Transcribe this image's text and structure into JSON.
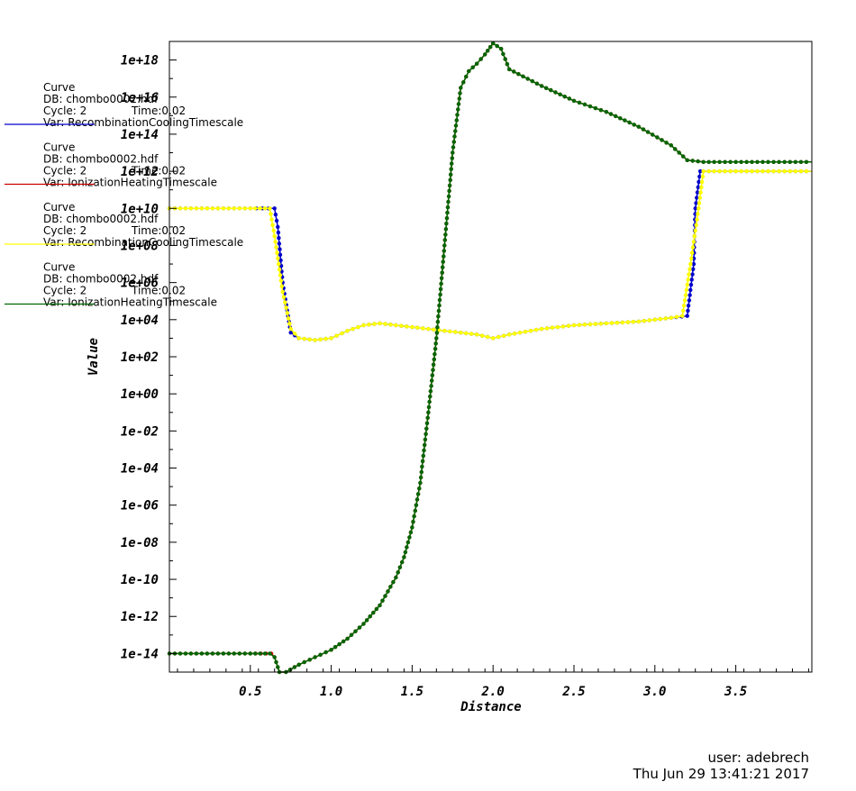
{
  "chart_data": {
    "type": "line",
    "xlabel": "Distance",
    "ylabel": "Value",
    "yscale": "log",
    "xlim": [
      0.0,
      3.97
    ],
    "ylim_exp": [
      -15.0,
      19.0
    ],
    "x_ticks": [
      0.5,
      1.0,
      1.5,
      2.0,
      2.5,
      3.0,
      3.5
    ],
    "x_tick_labels": [
      "0.5",
      "1.0",
      "1.5",
      "2.0",
      "2.5",
      "3.0",
      "3.5"
    ],
    "y_ticks_exp": [
      -14,
      -12,
      -10,
      -8,
      -6,
      -4,
      -2,
      0,
      2,
      4,
      6,
      8,
      10,
      12,
      14,
      16,
      18
    ],
    "y_tick_labels": [
      "1e-14",
      "1e-12",
      "1e-10",
      "1e-08",
      "1e-06",
      "1e-04",
      "1e-02",
      "1e+00",
      "1e+02",
      "1e+04",
      "1e+06",
      "1e+08",
      "1e+10",
      "1e+12",
      "1e+14",
      "1e+16",
      "1e+18"
    ],
    "series": [
      {
        "name": "RecombinationCoolingTimescale",
        "color": "#0000cc",
        "legend": {
          "title": "Curve",
          "db": "DB: chombo0002.hdf",
          "cycle": "Cycle: 2",
          "time": "Time:0.02",
          "var": "Var: RecombinationCoolingTimescale"
        },
        "x": [
          0.0,
          0.3,
          0.5,
          0.65,
          0.67,
          0.7,
          0.75,
          0.8,
          0.9,
          1.0,
          1.1,
          1.2,
          1.3,
          1.5,
          1.7,
          1.9,
          2.0,
          2.1,
          2.3,
          2.5,
          2.7,
          2.9,
          3.1,
          3.2,
          3.24,
          3.25,
          3.28,
          3.3,
          3.5,
          3.7,
          3.97
        ],
        "y_exp": [
          10.0,
          10.0,
          10.0,
          10.0,
          9.0,
          6.0,
          3.3,
          3.0,
          2.9,
          3.0,
          3.4,
          3.7,
          3.8,
          3.6,
          3.4,
          3.2,
          3.0,
          3.2,
          3.5,
          3.7,
          3.8,
          3.9,
          4.1,
          4.2,
          7.0,
          10.0,
          12.0,
          12.0,
          12.0,
          12.0,
          12.0
        ]
      },
      {
        "name": "IonizationHeatingTimescale",
        "color": "#cc0000",
        "legend": {
          "title": "Curve",
          "db": "DB: chombo0002.hdf",
          "cycle": "Cycle: 2",
          "time": "Time:0.02",
          "var": "Var: IonizationHeatingTimescale"
        },
        "x": [
          0.0,
          0.3,
          0.5,
          0.63,
          0.65,
          0.68,
          0.72,
          0.8,
          0.9,
          1.0,
          1.1,
          1.2,
          1.3,
          1.4,
          1.45,
          1.5,
          1.55,
          1.6,
          1.65,
          1.7,
          1.75,
          1.8,
          1.85,
          1.9,
          1.95,
          2.0,
          2.05,
          2.1,
          2.3,
          2.5,
          2.7,
          2.9,
          3.1,
          3.2,
          3.3,
          3.5,
          3.7,
          3.97
        ],
        "y_exp": [
          -14.0,
          -14.0,
          -14.0,
          -14.0,
          -14.2,
          -15.0,
          -15.0,
          -14.6,
          -14.2,
          -13.8,
          -13.2,
          -12.4,
          -11.4,
          -9.9,
          -8.8,
          -7.2,
          -4.8,
          -1.0,
          3.0,
          8.0,
          13.0,
          16.5,
          17.4,
          17.8,
          18.3,
          18.9,
          18.6,
          17.5,
          16.6,
          15.8,
          15.2,
          14.4,
          13.4,
          12.6,
          12.5,
          12.5,
          12.5,
          12.5
        ]
      },
      {
        "name": "RecombinationCoolingTimescale",
        "color": "#ffff00",
        "legend": {
          "title": "Curve",
          "db": "DB: chombo0002.hdf",
          "cycle": "Cycle: 2",
          "time": "Time:0.02",
          "var": "Var: RecombinationCoolingTimescale"
        },
        "x": [
          0.0,
          0.3,
          0.5,
          0.62,
          0.65,
          0.7,
          0.75,
          0.8,
          0.9,
          1.0,
          1.1,
          1.2,
          1.3,
          1.5,
          1.7,
          1.9,
          2.0,
          2.1,
          2.3,
          2.5,
          2.7,
          2.9,
          3.1,
          3.17,
          3.22,
          3.27,
          3.3,
          3.5,
          3.7,
          3.97
        ],
        "y_exp": [
          10.0,
          10.0,
          10.0,
          10.0,
          8.5,
          5.5,
          3.5,
          3.0,
          2.9,
          3.0,
          3.4,
          3.7,
          3.8,
          3.6,
          3.4,
          3.2,
          3.0,
          3.2,
          3.5,
          3.7,
          3.8,
          3.9,
          4.1,
          4.2,
          7.0,
          10.0,
          12.0,
          12.0,
          12.0,
          12.0
        ]
      },
      {
        "name": "IonizationHeatingTimescale",
        "color": "#006600",
        "legend": {
          "title": "Curve",
          "db": "DB: chombo0002.hdf",
          "cycle": "Cycle: 2",
          "time": "Time:0.02",
          "var": "Var: IonizationHeatingTimescale"
        },
        "x": [
          0.0,
          0.3,
          0.5,
          0.62,
          0.65,
          0.68,
          0.72,
          0.8,
          0.9,
          1.0,
          1.1,
          1.2,
          1.3,
          1.4,
          1.45,
          1.5,
          1.55,
          1.6,
          1.65,
          1.7,
          1.75,
          1.8,
          1.85,
          1.9,
          1.95,
          2.0,
          2.05,
          2.1,
          2.3,
          2.5,
          2.7,
          2.9,
          3.1,
          3.2,
          3.3,
          3.5,
          3.7,
          3.97
        ],
        "y_exp": [
          -14.0,
          -14.0,
          -14.0,
          -14.0,
          -14.2,
          -15.0,
          -15.0,
          -14.6,
          -14.2,
          -13.8,
          -13.2,
          -12.4,
          -11.4,
          -9.9,
          -8.8,
          -7.2,
          -4.8,
          -1.0,
          3.0,
          8.0,
          13.0,
          16.5,
          17.4,
          17.8,
          18.3,
          18.9,
          18.6,
          17.5,
          16.6,
          15.8,
          15.2,
          14.4,
          13.4,
          12.6,
          12.5,
          12.5,
          12.5,
          12.5
        ]
      }
    ]
  },
  "footer": {
    "user": "user: adebrech",
    "timestamp": "Thu Jun 29 13:41:21 2017"
  }
}
